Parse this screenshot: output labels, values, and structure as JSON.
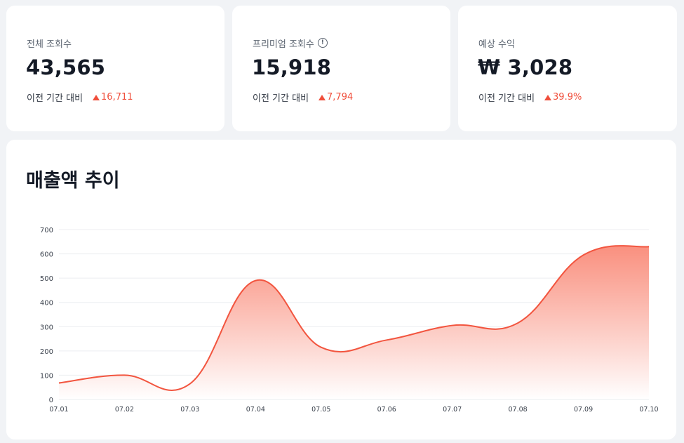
{
  "stats": [
    {
      "title": "전체 조회수",
      "value": "43,565",
      "compare_label": "이전 기간 대비",
      "delta": "16,711",
      "info": false
    },
    {
      "title": "프리미엄 조회수",
      "value": "15,918",
      "compare_label": "이전 기간 대비",
      "delta": "7,794",
      "info": true
    },
    {
      "title": "예상 수익",
      "value": "₩ 3,028",
      "compare_label": "이전 기간 대비",
      "delta": "39.9%",
      "info": false
    }
  ],
  "info_icon": "info-icon",
  "colors": {
    "accent": "#f04e3b",
    "line": "#f2553f",
    "fill_top": "#f98a78",
    "fill_bottom": "#ffffff"
  },
  "chart_data": {
    "type": "area",
    "title": "매출액 추이",
    "xlabel": "",
    "ylabel": "",
    "categories": [
      "07.01",
      "07.02",
      "07.03",
      "07.04",
      "07.05",
      "07.06",
      "07.07",
      "07.08",
      "07.09",
      "07.10"
    ],
    "y_ticks": [
      0,
      100,
      200,
      300,
      400,
      500,
      600,
      700
    ],
    "ylim": [
      0,
      700
    ],
    "grid": true,
    "legend": "none",
    "series": [
      {
        "values": [
          68,
          100,
          65,
          490,
          215,
          245,
          305,
          315,
          595,
          630
        ]
      }
    ]
  }
}
